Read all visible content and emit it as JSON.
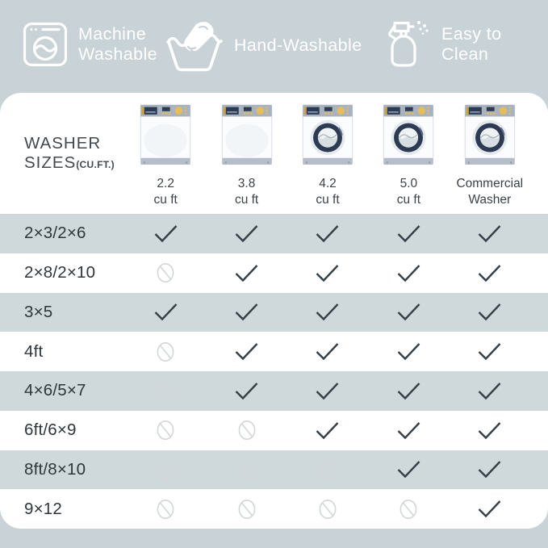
{
  "badges": [
    {
      "label": "Machine Washable",
      "icon": "washing-machine-icon"
    },
    {
      "label": "Hand-Washable",
      "icon": "hand-wash-icon"
    },
    {
      "label": "Easy to Clean",
      "icon": "spray-bottle-icon"
    }
  ],
  "table": {
    "corner": {
      "line1": "WASHER",
      "line2": "SIZES",
      "sub": "(CU.FT.)"
    },
    "columns": [
      {
        "label_line1": "2.2",
        "label_line2": "cu ft",
        "washer_style": "top-load"
      },
      {
        "label_line1": "3.8",
        "label_line2": "cu ft",
        "washer_style": "top-load"
      },
      {
        "label_line1": "4.2",
        "label_line2": "cu ft",
        "washer_style": "front-load"
      },
      {
        "label_line1": "5.0",
        "label_line2": "cu ft",
        "washer_style": "front-load"
      },
      {
        "label_line1": "Commercial",
        "label_line2": "Washer",
        "washer_style": "front-load"
      }
    ],
    "rows": [
      {
        "label": "2×3/2×6",
        "cells": [
          "check",
          "check",
          "check",
          "check",
          "check"
        ]
      },
      {
        "label": "2×8/2×10",
        "cells": [
          "no",
          "check",
          "check",
          "check",
          "check"
        ]
      },
      {
        "label": "3×5",
        "cells": [
          "check",
          "check",
          "check",
          "check",
          "check"
        ]
      },
      {
        "label": "4ft",
        "cells": [
          "no",
          "check",
          "check",
          "check",
          "check"
        ]
      },
      {
        "label": "4×6/5×7",
        "cells": [
          "no",
          "check",
          "check",
          "check",
          "check"
        ]
      },
      {
        "label": "6ft/6×9",
        "cells": [
          "no",
          "no",
          "check",
          "check",
          "check"
        ]
      },
      {
        "label": "8ft/8×10",
        "cells": [
          "no",
          "no",
          "no",
          "check",
          "check"
        ]
      },
      {
        "label": "9×12",
        "cells": [
          "no",
          "no",
          "no",
          "no",
          "check"
        ]
      }
    ]
  },
  "colors": {
    "background": "#c9d2d7",
    "stripe": "#cfd9dc",
    "card": "#ffffff",
    "check": "#353f47",
    "prohibited": "#d3d7d8",
    "washer_navy": "#2c3a54",
    "washer_yellow": "#e7bd55",
    "washer_panel": "#a9b3bf"
  }
}
